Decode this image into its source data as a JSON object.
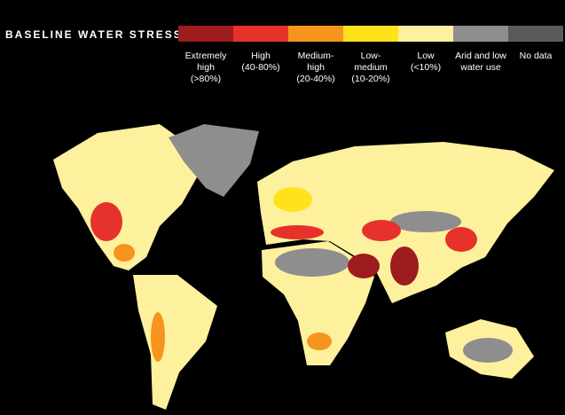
{
  "title": "BASELINE WATER STRESS",
  "legend": [
    {
      "lines": [
        "Extremely",
        "high",
        "(>80%)"
      ],
      "color": "#9e1b1e"
    },
    {
      "lines": [
        "High",
        "(40-80%)"
      ],
      "color": "#e6322b"
    },
    {
      "lines": [
        "Medium-",
        "high",
        "(20-40%)"
      ],
      "color": "#f7941d"
    },
    {
      "lines": [
        "Low-",
        "medium",
        "(10-20%)"
      ],
      "color": "#ffe21c"
    },
    {
      "lines": [
        "Low",
        "(<10%)"
      ],
      "color": "#fdf19e"
    },
    {
      "lines": [
        "Arid and low",
        "water use"
      ],
      "color": "#8e8e8e"
    },
    {
      "lines": [
        "No data"
      ],
      "color": "#5a5a5a"
    }
  ]
}
